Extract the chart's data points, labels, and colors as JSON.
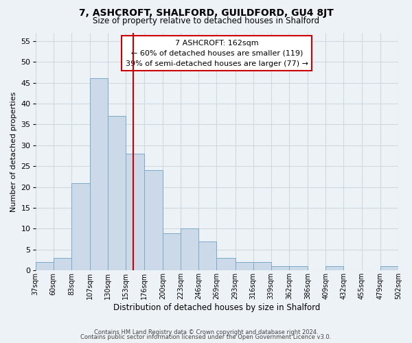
{
  "title": "7, ASHCROFT, SHALFORD, GUILDFORD, GU4 8JT",
  "subtitle": "Size of property relative to detached houses in Shalford",
  "xlabel": "Distribution of detached houses by size in Shalford",
  "ylabel": "Number of detached properties",
  "footer_line1": "Contains HM Land Registry data © Crown copyright and database right 2024.",
  "footer_line2": "Contains public sector information licensed under the Open Government Licence v3.0.",
  "bar_edges": [
    37,
    60,
    83,
    107,
    130,
    153,
    176,
    200,
    223,
    246,
    269,
    293,
    316,
    339,
    362,
    386,
    409,
    432,
    455,
    479,
    502
  ],
  "bar_heights": [
    2,
    3,
    21,
    46,
    37,
    28,
    24,
    9,
    10,
    7,
    3,
    2,
    2,
    1,
    1,
    0,
    1,
    0,
    0,
    1
  ],
  "bar_color": "#ccd9e8",
  "bar_edgecolor": "#7aaac8",
  "vline_x": 162,
  "vline_color": "#cc0000",
  "annotation_text": "7 ASHCROFT: 162sqm\n← 60% of detached houses are smaller (119)\n39% of semi-detached houses are larger (77) →",
  "annotation_box_edgecolor": "#cc0000",
  "annotation_box_facecolor": "white",
  "ylim": [
    0,
    57
  ],
  "yticks": [
    0,
    5,
    10,
    15,
    20,
    25,
    30,
    35,
    40,
    45,
    50,
    55
  ],
  "grid_color": "#d0d8e0",
  "background_color": "#edf2f7",
  "tick_labels": [
    "37sqm",
    "60sqm",
    "83sqm",
    "107sqm",
    "130sqm",
    "153sqm",
    "176sqm",
    "200sqm",
    "223sqm",
    "246sqm",
    "269sqm",
    "293sqm",
    "316sqm",
    "339sqm",
    "362sqm",
    "386sqm",
    "409sqm",
    "432sqm",
    "455sqm",
    "479sqm",
    "502sqm"
  ]
}
